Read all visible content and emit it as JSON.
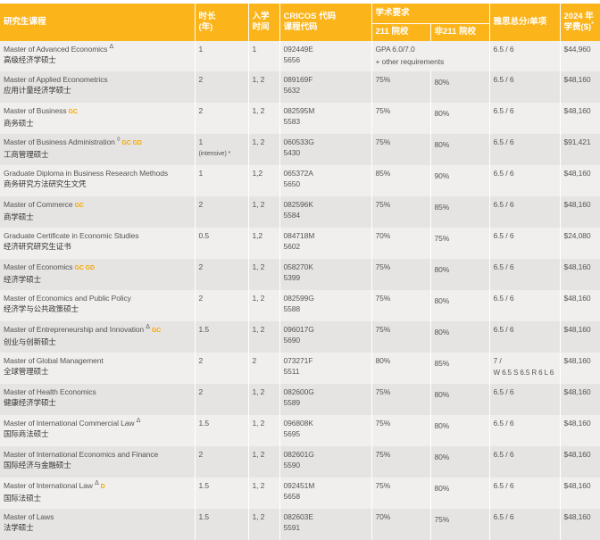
{
  "header": {
    "program": "研究生课程",
    "duration": "时长\n(年)",
    "intake": "入学\n时间",
    "cricos": "CRICOS 代码\n课程代码",
    "academic": "学术要求",
    "c211": "211 院校",
    "non211": "非211 院校",
    "ielts": "雅思总分/单项",
    "fee": "2024 年\n学费($)",
    "fee_note": "*"
  },
  "rows": [
    {
      "en": "Master of Advanced Economics",
      "sup": "Δ",
      "tags": "",
      "cn": "高级经济学硕士",
      "dur": "1",
      "dur_note": "",
      "intake": "1",
      "cricos": "092449E",
      "code": "5656",
      "req211": "GPA 6.0/7.0",
      "req_merged": "+ other requirements",
      "non211": "",
      "ielts": "6.5 / 6",
      "ielts2": "",
      "fee": "$44,960"
    },
    {
      "en": "Master of Applied Econometrics",
      "sup": "",
      "tags": "",
      "cn": "应用计量经济学硕士",
      "dur": "2",
      "dur_note": "",
      "intake": "1, 2",
      "cricos": "089169F",
      "code": "5632",
      "req211": "75%",
      "non211": "80%",
      "ielts": "6.5 / 6",
      "ielts2": "",
      "fee": "$48,160"
    },
    {
      "en": "Master of Business",
      "sup": "",
      "tags": "GC",
      "cn": "商务硕士",
      "dur": "2",
      "dur_note": "",
      "intake": "1, 2",
      "cricos": "082595M",
      "code": "5583",
      "req211": "75%",
      "non211": "80%",
      "ielts": "6.5 / 6",
      "ielts2": "",
      "fee": "$48,160"
    },
    {
      "en": "Master of Business Administration",
      "sup": "◊",
      "tags": "GC GD",
      "cn": "工商管理硕士",
      "dur": "1",
      "dur_note": "(intensive) *",
      "intake": "1, 2",
      "cricos": "060533G",
      "code": "5430",
      "req211": "75%",
      "non211": "80%",
      "ielts": "6.5 / 6",
      "ielts2": "",
      "fee": "$91,421"
    },
    {
      "en": "Graduate Diploma in Business Research Methods",
      "sup": "",
      "tags": "",
      "cn": "商务研究方法研究生文凭",
      "dur": "1",
      "dur_note": "",
      "intake": "1,2",
      "cricos": "065372A",
      "code": "5650",
      "req211": "85%",
      "non211": "90%",
      "ielts": "6.5 / 6",
      "ielts2": "",
      "fee": "$48,160"
    },
    {
      "en": "Master of Commerce",
      "sup": "",
      "tags": "GC",
      "cn": "商学硕士",
      "dur": "2",
      "dur_note": "",
      "intake": "1, 2",
      "cricos": "082596K",
      "code": "5584",
      "req211": "75%",
      "non211": "85%",
      "ielts": "6.5 / 6",
      "ielts2": "",
      "fee": "$48,160"
    },
    {
      "en": "Graduate Certificate in Economic Studies",
      "sup": "",
      "tags": "",
      "cn": "经济研究研究生证书",
      "dur": "0.5",
      "dur_note": "",
      "intake": "1,2",
      "cricos": "084718M",
      "code": "5602",
      "req211": "70%",
      "non211": "75%",
      "ielts": "6.5 / 6",
      "ielts2": "",
      "fee": "$24,080"
    },
    {
      "en": "Master of Economics",
      "sup": "",
      "tags": "GC GD",
      "cn": "经济学硕士",
      "dur": "2",
      "dur_note": "",
      "intake": "1, 2",
      "cricos": "058270K",
      "code": "5399",
      "req211": "75%",
      "non211": "80%",
      "ielts": "6.5 / 6",
      "ielts2": "",
      "fee": "$48,160"
    },
    {
      "en": "Master of Economics and Public Policy",
      "sup": "",
      "tags": "",
      "cn": "经济学与公共政策硕士",
      "dur": "2",
      "dur_note": "",
      "intake": "1, 2",
      "cricos": "082599G",
      "code": "5588",
      "req211": "75%",
      "non211": "80%",
      "ielts": "6.5 / 6",
      "ielts2": "",
      "fee": "$48,160"
    },
    {
      "en": "Master of Entrepreneurship and Innovation",
      "sup": "Δ",
      "tags": "GC",
      "cn": "创业与创新硕士",
      "dur": "1.5",
      "dur_note": "",
      "intake": "1, 2",
      "cricos": "096017G",
      "code": "5690",
      "req211": "75%",
      "non211": "80%",
      "ielts": "6.5 / 6",
      "ielts2": "",
      "fee": "$48,160"
    },
    {
      "en": "Master of Global Management",
      "sup": "",
      "tags": "",
      "cn": "全球管理硕士",
      "dur": "2",
      "dur_note": "",
      "intake": "2",
      "cricos": "073271F",
      "code": "5511",
      "req211": "80%",
      "non211": "85%",
      "ielts": "7 /",
      "ielts2": "W 6.5 S 6.5 R 6 L 6",
      "fee": "$48,160"
    },
    {
      "en": "Master of Health Economics",
      "sup": "",
      "tags": "",
      "cn": "健康经济学硕士",
      "dur": "2",
      "dur_note": "",
      "intake": "1, 2",
      "cricos": "082600G",
      "code": "5589",
      "req211": "75%",
      "non211": "80%",
      "ielts": "6.5 / 6",
      "ielts2": "",
      "fee": "$48,160"
    },
    {
      "en": "Master of International Commercial Law",
      "sup": "Δ",
      "tags": "",
      "cn": "国际商法硕士",
      "dur": "1.5",
      "dur_note": "",
      "intake": "1, 2",
      "cricos": "096808K",
      "code": "5695",
      "req211": "75%",
      "non211": "80%",
      "ielts": "6.5 / 6",
      "ielts2": "",
      "fee": "$48,160"
    },
    {
      "en": "Master of International Economics and Finance",
      "sup": "",
      "tags": "",
      "cn": "国际经济与金融硕士",
      "dur": "2",
      "dur_note": "",
      "intake": "1, 2",
      "cricos": "082601G",
      "code": "5590",
      "req211": "75%",
      "non211": "80%",
      "ielts": "6.5 / 6",
      "ielts2": "",
      "fee": "$48,160"
    },
    {
      "en": "Master of International Law",
      "sup": "Δ",
      "tags": "D",
      "cn": "国际法硕士",
      "dur": "1.5",
      "dur_note": "",
      "intake": "1, 2",
      "cricos": "092451M",
      "code": "5658",
      "req211": "75%",
      "non211": "80%",
      "ielts": "6.5 / 6",
      "ielts2": "",
      "fee": "$48,160"
    },
    {
      "en": "Master of Laws",
      "sup": "",
      "tags": "",
      "cn": "法学硕士",
      "dur": "1.5",
      "dur_note": "",
      "intake": "1, 2",
      "cricos": "082603E",
      "code": "5591",
      "req211": "70%",
      "non211": "75%",
      "ielts": "6.5 / 6",
      "ielts2": "",
      "fee": "$48,160"
    }
  ]
}
